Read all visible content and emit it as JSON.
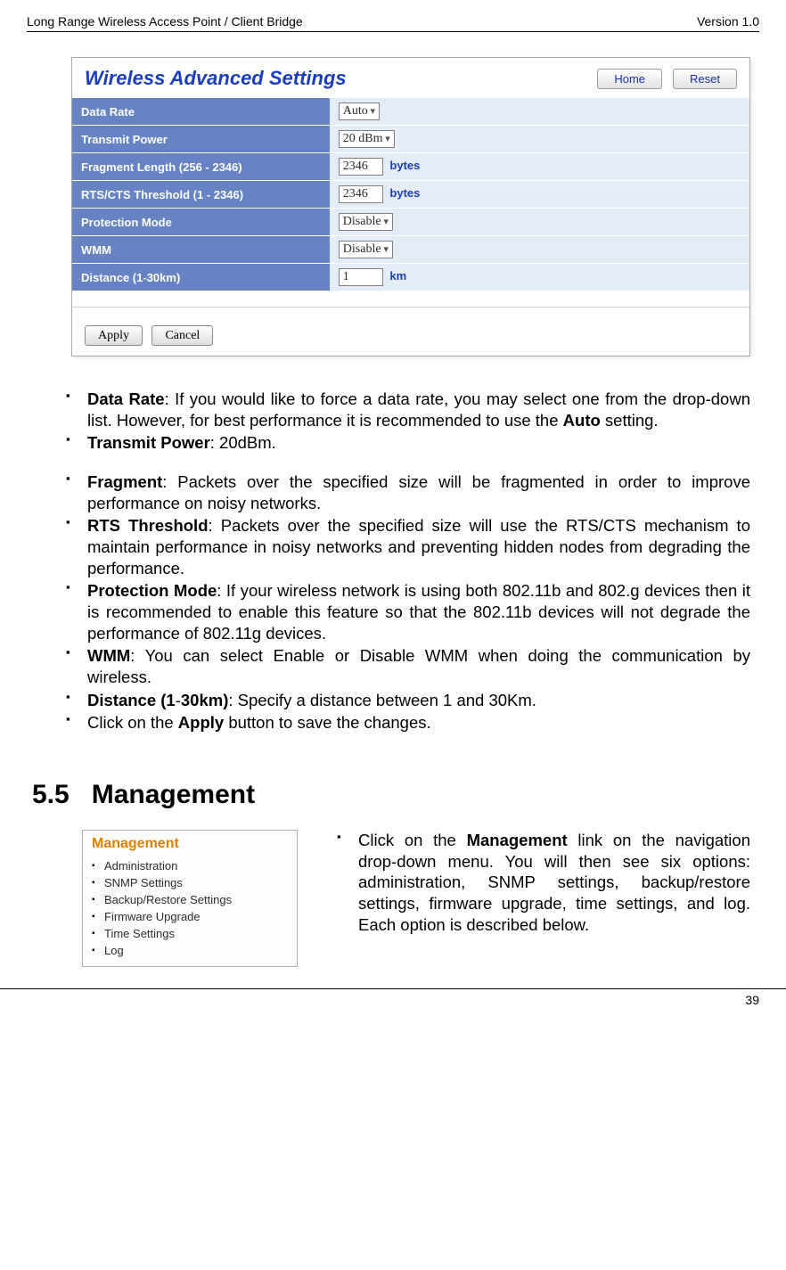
{
  "header": {
    "left": "Long Range Wireless Access Point / Client Bridge",
    "right": "Version 1.0"
  },
  "footer": {
    "page": "39"
  },
  "panel": {
    "title": "Wireless Advanced Settings",
    "btn_home": "Home",
    "btn_reset": "Reset",
    "rows": {
      "data_rate": {
        "label": "Data Rate",
        "value": "Auto"
      },
      "tx_power": {
        "label": "Transmit Power",
        "value": "20 dBm"
      },
      "fragment": {
        "label": "Fragment Length (256 - 2346)",
        "value": "2346",
        "unit": "bytes"
      },
      "rtscts": {
        "label": "RTS/CTS Threshold (1 - 2346)",
        "value": "2346",
        "unit": "bytes"
      },
      "protection": {
        "label": "Protection Mode",
        "value": "Disable"
      },
      "wmm": {
        "label": "WMM",
        "value": "Disable"
      },
      "distance": {
        "label": "Distance (1-30km)",
        "value": "1",
        "unit": "km"
      }
    },
    "btn_apply": "Apply",
    "btn_cancel": "Cancel"
  },
  "bullets": {
    "b1a": "Data Rate",
    "b1b": ": If you would like to force a data rate, you may select one from the drop-down list. However, for best performance it is recommended to use the ",
    "b1c": "Auto",
    "b1d": " setting.",
    "b2a": "Transmit Power",
    "b2b": ": 20dBm.",
    "b3a": "Fragment",
    "b3b": ": Packets over the specified size will be fragmented in order to improve performance on noisy networks.",
    "b4a": "RTS Threshold",
    "b4b": ": Packets over the specified size will use the RTS/CTS mechanism to maintain performance in noisy networks and preventing hidden nodes from degrading the performance.",
    "b5a": "Protection Mode",
    "b5b": ": If your wireless network is using both 802.11b and 802.g devices then it is recommended to enable this feature so that the 802.11b devices will not degrade the performance of 802.11g devices.",
    "b6a": "WMM",
    "b6b": ": You can select Enable or Disable WMM when doing the communication by wireless.",
    "b7a": "Distance (1",
    "b7b": "-",
    "b7c": "30km)",
    "b7d": ": Specify a distance between 1 and 30Km.",
    "b8a": "Click on the ",
    "b8b": "Apply",
    "b8c": " button to save the changes."
  },
  "section": {
    "num": "5.5",
    "title": "Management"
  },
  "mgmt_panel": {
    "title": "Management",
    "items": [
      "Administration",
      "SNMP Settings",
      "Backup/Restore Settings",
      "Firmware Upgrade",
      "Time Settings",
      "Log"
    ]
  },
  "mgmt_text": {
    "a": "Click on the ",
    "b": "Management",
    "c": " link on the navigation drop-down menu. You will then see six options: administration, SNMP settings, backup/restore settings, firmware upgrade, time settings, and log. Each option is described below."
  }
}
